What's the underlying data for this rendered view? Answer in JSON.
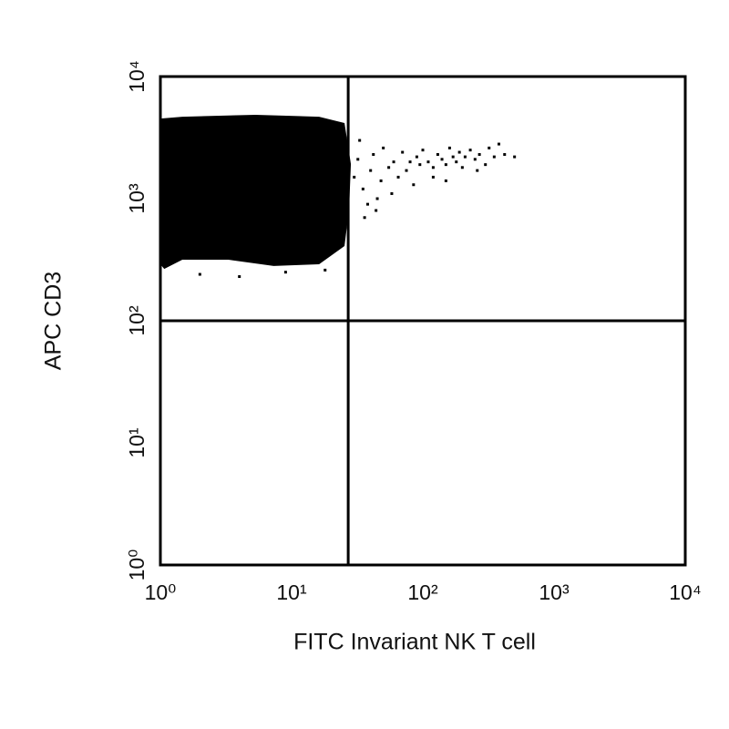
{
  "chart_data": {
    "type": "scatter",
    "xlabel": "FITC Invariant NK T cell",
    "ylabel": "APC CD3",
    "xscale": "log",
    "yscale": "log",
    "xlim": [
      1,
      10000
    ],
    "ylim": [
      1,
      10000
    ],
    "xticks": [
      {
        "value": 1,
        "label": "10⁰"
      },
      {
        "value": 10,
        "label": "10¹"
      },
      {
        "value": 100,
        "label": "10²"
      },
      {
        "value": 1000,
        "label": "10³"
      },
      {
        "value": 10000,
        "label": "10⁴"
      }
    ],
    "yticks": [
      {
        "value": 1,
        "label": "10⁰"
      },
      {
        "value": 10,
        "label": "10¹"
      },
      {
        "value": 100,
        "label": "10²"
      },
      {
        "value": 1000,
        "label": "10³"
      },
      {
        "value": 10000,
        "label": "10⁴"
      }
    ],
    "gate_x": 27,
    "gate_y": 100,
    "region": {
      "color": "#000000",
      "x": [
        1,
        1.47,
        5.3,
        16.2,
        25.3,
        28.3,
        27.4,
        25.3,
        16.2,
        7.3,
        3.3,
        1.47,
        1.07,
        1
      ],
      "y": [
        4530,
        4690,
        4860,
        4690,
        4160,
        1920,
        813,
        409,
        290,
        281,
        316,
        316,
        266,
        290
      ]
    },
    "series": [
      {
        "color": "#000000",
        "x": [
          30,
          32,
          35,
          38,
          40,
          42,
          45,
          48,
          50,
          55,
          58,
          60,
          65,
          70,
          75,
          80,
          85,
          90,
          95,
          100,
          110,
          120,
          130,
          140,
          150,
          160,
          170,
          180,
          190,
          200,
          210,
          230,
          250,
          270,
          300,
          320,
          350,
          380,
          420,
          500,
          36,
          44,
          120,
          150,
          260,
          33,
          2,
          4,
          9,
          18
        ],
        "values": [
          1500,
          2100,
          1200,
          900,
          1700,
          2300,
          1000,
          1400,
          2600,
          1800,
          1100,
          2000,
          1500,
          2400,
          1700,
          2000,
          1300,
          2200,
          1900,
          2500,
          2000,
          1800,
          2300,
          2100,
          1900,
          2600,
          2200,
          2000,
          2400,
          1800,
          2200,
          2500,
          2100,
          2300,
          1900,
          2600,
          2200,
          2800,
          2300,
          2200,
          700,
          800,
          1500,
          1400,
          1700,
          3000,
          240,
          230,
          250,
          260
        ]
      }
    ]
  }
}
